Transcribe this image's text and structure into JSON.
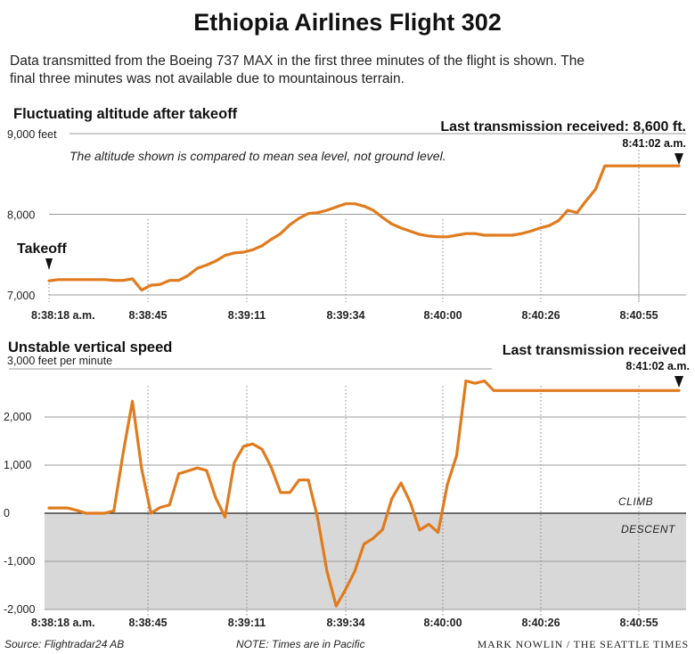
{
  "header": {
    "title": "Ethiopia Airlines Flight 302",
    "dek_line1": "Data transmitted from the Boeing 737 MAX in the first three minutes of the flight is shown. The",
    "dek_line2": "final three minutes was not available due to mountainous terrain."
  },
  "footer": {
    "source": "Source: Flightradar24 AB",
    "note": "NOTE: Times are in Pacific",
    "credit": "MARK NOWLIN / THE SEATTLE TIMES"
  },
  "colors": {
    "line": "#e07b1e",
    "grid": "#9a9a9a",
    "descent_fill": "#d8d8d8",
    "text": "#111111"
  },
  "chart_data": [
    {
      "type": "line",
      "title": "Fluctuating altitude after takeoff",
      "ylabel": "",
      "y_unit_label": "9,000 feet",
      "ylim": [
        7000,
        9000
      ],
      "ytick_labels": [
        "9,000 feet",
        "8,000",
        "7,000"
      ],
      "xtick_labels": [
        "8:38:18 a.m.",
        "8:38:45",
        "8:39:11",
        "8:39:34",
        "8:40:00",
        "8:40:26",
        "8:40:55"
      ],
      "note": "The altitude shown is compared to mean sea level, not ground level.",
      "annotations": {
        "takeoff": "Takeoff",
        "last_transmission": "Last transmission received: 8,600 ft.",
        "last_time": "8:41:02 a.m."
      },
      "series": [
        {
          "x": [
            0,
            3,
            6,
            9,
            12,
            15,
            18,
            21,
            24,
            27,
            30,
            33,
            36,
            39,
            42,
            45,
            48,
            51,
            54,
            57,
            60,
            63,
            66,
            69,
            72,
            75,
            78,
            81,
            84,
            87,
            90,
            93,
            96,
            99,
            102,
            105,
            108,
            111,
            114,
            117,
            120,
            123,
            126,
            129,
            132,
            135,
            138,
            141,
            144,
            147,
            150,
            153,
            156,
            159,
            162,
            165,
            168,
            171,
            174,
            177,
            180,
            183,
            186,
            189,
            192,
            195,
            198,
            201,
            204
          ],
          "values": [
            7175,
            7190,
            7190,
            7190,
            7190,
            7190,
            7190,
            7180,
            7180,
            7200,
            7060,
            7120,
            7130,
            7180,
            7180,
            7240,
            7330,
            7370,
            7420,
            7490,
            7520,
            7530,
            7560,
            7610,
            7690,
            7760,
            7870,
            7950,
            8010,
            8020,
            8050,
            8090,
            8130,
            8130,
            8100,
            8050,
            7960,
            7880,
            7830,
            7790,
            7750,
            7730,
            7720,
            7720,
            7740,
            7760,
            7760,
            7740,
            7740,
            7740,
            7740,
            7760,
            7790,
            7830,
            7860,
            7920,
            8050,
            8020,
            8170,
            8310,
            8600,
            8600,
            8600,
            8600,
            8600,
            8600,
            8600,
            8600,
            8600
          ]
        }
      ]
    },
    {
      "type": "line",
      "title": "Unstable vertical speed",
      "ylabel": "",
      "y_unit_label": "3,000 feet per minute",
      "ylim": [
        -2000,
        3000
      ],
      "ytick_labels": [
        "3,000 feet per minute",
        "2,000",
        "1,000",
        "0",
        "-1,000",
        "-2,000"
      ],
      "xtick_labels": [
        "8:38:18 a.m.",
        "8:38:45",
        "8:39:11",
        "8:39:34",
        "8:40:00",
        "8:40:26",
        "8:40:55"
      ],
      "annotations": {
        "climb": "CLIMB",
        "descent": "DESCENT",
        "last_transmission": "Last transmission received",
        "last_time": "8:41:02 a.m."
      },
      "series": [
        {
          "x": [
            0,
            3,
            6,
            9,
            12,
            15,
            18,
            21,
            24,
            27,
            30,
            33,
            36,
            39,
            42,
            45,
            48,
            51,
            54,
            57,
            60,
            63,
            66,
            69,
            72,
            75,
            78,
            81,
            84,
            87,
            90,
            93,
            96,
            99,
            102,
            105,
            108,
            111,
            114,
            117,
            120,
            123,
            126,
            129,
            132,
            135,
            138,
            141,
            144,
            147,
            150,
            153,
            156,
            159,
            162,
            165,
            168,
            171,
            174,
            177,
            180,
            183,
            186,
            189,
            192,
            195,
            198,
            201,
            204
          ],
          "values": [
            110,
            110,
            110,
            60,
            0,
            0,
            0,
            50,
            1250,
            2330,
            920,
            0,
            120,
            170,
            820,
            880,
            940,
            890,
            320,
            -80,
            1050,
            1390,
            1440,
            1330,
            950,
            430,
            430,
            690,
            690,
            -100,
            -1200,
            -1930,
            -1590,
            -1210,
            -640,
            -520,
            -340,
            300,
            630,
            220,
            -350,
            -230,
            -400,
            600,
            1200,
            2750,
            2700,
            2750,
            2550,
            2550,
            2550,
            2550,
            2550,
            2550,
            2550,
            2550,
            2550,
            2550,
            2550,
            2550,
            2550,
            2550,
            2550,
            2550,
            2550,
            2550,
            2550,
            2550,
            2550
          ]
        }
      ]
    }
  ]
}
